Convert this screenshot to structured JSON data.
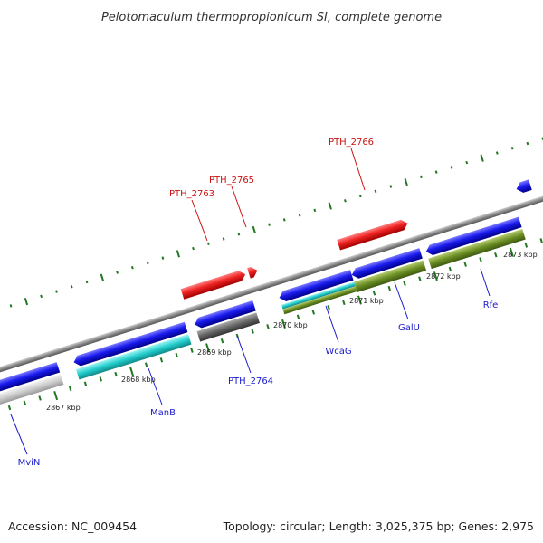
{
  "title": "Pelotomaculum thermopropionicum SI, complete genome",
  "footer": {
    "accession": "Accession: NC_009454",
    "topology": "Topology: circular; Length: 3,025,375 bp; Genes: 2,975"
  },
  "scale_labels": [
    "2867 kbp",
    "2868 kbp",
    "2869 kbp",
    "2870 kbp",
    "2871 kbp",
    "2872 kbp",
    "2873 kbp"
  ],
  "gene_labels": [
    {
      "name": "MviN",
      "strand": "reverse"
    },
    {
      "name": "ManB",
      "strand": "reverse"
    },
    {
      "name": "PTH_2764",
      "strand": "reverse"
    },
    {
      "name": "WcaG",
      "strand": "reverse"
    },
    {
      "name": "GalU",
      "strand": "reverse"
    },
    {
      "name": "Rfe",
      "strand": "reverse"
    },
    {
      "name": "PTH_2763",
      "strand": "forward"
    },
    {
      "name": "PTH_2765",
      "strand": "forward"
    },
    {
      "name": "PTH_2766",
      "strand": "forward"
    }
  ],
  "colors": {
    "forward_gene": "#ee2222",
    "reverse_gene": "#1a1aee",
    "reverse_label": "#1a1acc",
    "forward_label": "#cc1111",
    "backbone": "#888888",
    "tick": "#227722",
    "cog_light_gray": "#cccccc",
    "cog_cyan": "#22cccc",
    "cog_dark_gray": "#666666",
    "cog_olive": "#6b8e23"
  }
}
